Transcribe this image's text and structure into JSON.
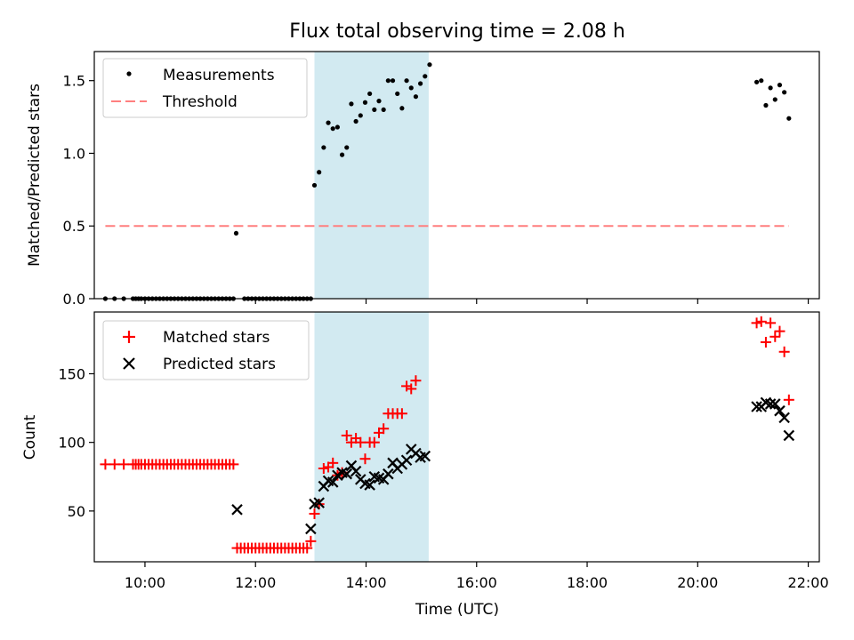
{
  "figure": {
    "title": "Flux total observing time = 2.08 h"
  },
  "colors": {
    "measurements": "#000000",
    "threshold": "#ff7f7f",
    "matched": "#ff0000",
    "predicted": "#000000",
    "shade": "#add8e6"
  },
  "chart_data": [
    {
      "type": "scatter",
      "panel": "top",
      "ylabel": "Matched/Predicted stars",
      "xlim": [
        "09:05",
        "22:12"
      ],
      "ylim": [
        0,
        1.7
      ],
      "yticks": [
        0.0,
        0.5,
        1.0,
        1.5
      ],
      "ytick_labels": [
        "0.0",
        "0.5",
        "1.0",
        "1.5"
      ],
      "x_tick_labels_shown": false,
      "grid": false,
      "legend_position": "top-left",
      "shaded_span": {
        "x_start": "13:04",
        "x_end": "15:08"
      },
      "series": [
        {
          "name": "Measurements",
          "marker": "dot",
          "points": [
            [
              "09:17",
              0
            ],
            [
              "09:27",
              0
            ],
            [
              "09:37",
              0
            ],
            [
              "09:47",
              0
            ],
            [
              "09:50",
              0
            ],
            [
              "09:53",
              0
            ],
            [
              "09:56",
              0
            ],
            [
              "10:00",
              0
            ],
            [
              "10:04",
              0
            ],
            [
              "10:08",
              0
            ],
            [
              "10:12",
              0
            ],
            [
              "10:16",
              0
            ],
            [
              "10:20",
              0
            ],
            [
              "10:24",
              0
            ],
            [
              "10:28",
              0
            ],
            [
              "10:32",
              0
            ],
            [
              "10:36",
              0
            ],
            [
              "10:40",
              0
            ],
            [
              "10:44",
              0
            ],
            [
              "10:48",
              0
            ],
            [
              "10:52",
              0
            ],
            [
              "10:56",
              0
            ],
            [
              "11:00",
              0
            ],
            [
              "11:04",
              0
            ],
            [
              "11:08",
              0
            ],
            [
              "11:12",
              0
            ],
            [
              "11:16",
              0
            ],
            [
              "11:20",
              0
            ],
            [
              "11:24",
              0
            ],
            [
              "11:28",
              0
            ],
            [
              "11:32",
              0
            ],
            [
              "11:36",
              0
            ],
            [
              "11:39",
              0.45
            ],
            [
              "11:48",
              0
            ],
            [
              "11:52",
              0
            ],
            [
              "11:56",
              0
            ],
            [
              "12:00",
              0
            ],
            [
              "12:04",
              0
            ],
            [
              "12:08",
              0
            ],
            [
              "12:12",
              0
            ],
            [
              "12:16",
              0
            ],
            [
              "12:20",
              0
            ],
            [
              "12:24",
              0
            ],
            [
              "12:28",
              0
            ],
            [
              "12:32",
              0
            ],
            [
              "12:36",
              0
            ],
            [
              "12:40",
              0
            ],
            [
              "12:44",
              0
            ],
            [
              "12:48",
              0
            ],
            [
              "12:52",
              0
            ],
            [
              "12:56",
              0
            ],
            [
              "13:00",
              0
            ],
            [
              "13:04",
              0.78
            ],
            [
              "13:09",
              0.87
            ],
            [
              "13:14",
              1.04
            ],
            [
              "13:19",
              1.21
            ],
            [
              "13:24",
              1.17
            ],
            [
              "13:29",
              1.18
            ],
            [
              "13:34",
              0.99
            ],
            [
              "13:39",
              1.04
            ],
            [
              "13:44",
              1.34
            ],
            [
              "13:49",
              1.22
            ],
            [
              "13:54",
              1.26
            ],
            [
              "13:59",
              1.35
            ],
            [
              "14:04",
              1.41
            ],
            [
              "14:09",
              1.3
            ],
            [
              "14:14",
              1.36
            ],
            [
              "14:19",
              1.3
            ],
            [
              "14:24",
              1.5
            ],
            [
              "14:29",
              1.5
            ],
            [
              "14:34",
              1.41
            ],
            [
              "14:39",
              1.31
            ],
            [
              "14:44",
              1.5
            ],
            [
              "14:49",
              1.45
            ],
            [
              "14:54",
              1.39
            ],
            [
              "14:59",
              1.48
            ],
            [
              "15:04",
              1.53
            ],
            [
              "15:09",
              1.61
            ],
            [
              "21:04",
              1.49
            ],
            [
              "21:09",
              1.5
            ],
            [
              "21:14",
              1.33
            ],
            [
              "21:19",
              1.45
            ],
            [
              "21:24",
              1.37
            ],
            [
              "21:29",
              1.47
            ],
            [
              "21:34",
              1.42
            ],
            [
              "21:39",
              1.24
            ]
          ]
        },
        {
          "name": "Threshold",
          "marker": "dashed-line",
          "points": [
            [
              "09:17",
              0.5
            ],
            [
              "21:39",
              0.5
            ]
          ]
        }
      ]
    },
    {
      "type": "scatter",
      "panel": "bottom",
      "xlabel": "Time (UTC)",
      "ylabel": "Count",
      "xlim": [
        "09:05",
        "22:12"
      ],
      "ylim": [
        13,
        195
      ],
      "xticks": [
        "10:00",
        "12:00",
        "14:00",
        "16:00",
        "18:00",
        "20:00",
        "22:00"
      ],
      "yticks": [
        50,
        100,
        150
      ],
      "ytick_labels": [
        "50",
        "100",
        "150"
      ],
      "grid": false,
      "legend_position": "top-left",
      "shaded_span": {
        "x_start": "13:04",
        "x_end": "15:08"
      },
      "series": [
        {
          "name": "Matched stars",
          "marker": "plus",
          "points": [
            [
              "09:17",
              84
            ],
            [
              "09:27",
              84
            ],
            [
              "09:37",
              84
            ],
            [
              "09:47",
              84
            ],
            [
              "09:50",
              84
            ],
            [
              "09:53",
              84
            ],
            [
              "09:56",
              84
            ],
            [
              "10:00",
              84
            ],
            [
              "10:04",
              84
            ],
            [
              "10:08",
              84
            ],
            [
              "10:12",
              84
            ],
            [
              "10:16",
              84
            ],
            [
              "10:20",
              84
            ],
            [
              "10:24",
              84
            ],
            [
              "10:28",
              84
            ],
            [
              "10:32",
              84
            ],
            [
              "10:36",
              84
            ],
            [
              "10:40",
              84
            ],
            [
              "10:44",
              84
            ],
            [
              "10:48",
              84
            ],
            [
              "10:52",
              84
            ],
            [
              "10:56",
              84
            ],
            [
              "11:00",
              84
            ],
            [
              "11:04",
              84
            ],
            [
              "11:08",
              84
            ],
            [
              "11:12",
              84
            ],
            [
              "11:16",
              84
            ],
            [
              "11:20",
              84
            ],
            [
              "11:24",
              84
            ],
            [
              "11:28",
              84
            ],
            [
              "11:32",
              84
            ],
            [
              "11:36",
              84
            ],
            [
              "11:40",
              23
            ],
            [
              "11:44",
              23
            ],
            [
              "11:48",
              23
            ],
            [
              "11:52",
              23
            ],
            [
              "11:56",
              23
            ],
            [
              "12:00",
              23
            ],
            [
              "12:04",
              23
            ],
            [
              "12:08",
              23
            ],
            [
              "12:12",
              23
            ],
            [
              "12:16",
              23
            ],
            [
              "12:20",
              23
            ],
            [
              "12:24",
              23
            ],
            [
              "12:28",
              23
            ],
            [
              "12:32",
              23
            ],
            [
              "12:36",
              23
            ],
            [
              "12:40",
              23
            ],
            [
              "12:44",
              23
            ],
            [
              "12:48",
              23
            ],
            [
              "12:52",
              23
            ],
            [
              "12:56",
              23
            ],
            [
              "13:00",
              28
            ],
            [
              "13:04",
              48
            ],
            [
              "13:09",
              55
            ],
            [
              "13:14",
              81
            ],
            [
              "13:19",
              82
            ],
            [
              "13:24",
              85
            ],
            [
              "13:29",
              76
            ],
            [
              "13:34",
              78
            ],
            [
              "13:39",
              105
            ],
            [
              "13:44",
              100
            ],
            [
              "13:49",
              103
            ],
            [
              "13:54",
              100
            ],
            [
              "13:59",
              88
            ],
            [
              "14:04",
              100
            ],
            [
              "14:09",
              100
            ],
            [
              "14:14",
              107
            ],
            [
              "14:19",
              110
            ],
            [
              "14:24",
              121
            ],
            [
              "14:29",
              121
            ],
            [
              "14:34",
              121
            ],
            [
              "14:39",
              121
            ],
            [
              "14:44",
              141
            ],
            [
              "14:49",
              139
            ],
            [
              "14:54",
              145
            ],
            [
              "21:04",
              187
            ],
            [
              "21:09",
              188
            ],
            [
              "21:14",
              173
            ],
            [
              "21:19",
              187
            ],
            [
              "21:24",
              177
            ],
            [
              "21:29",
              181
            ],
            [
              "21:34",
              166
            ],
            [
              "21:39",
              131
            ]
          ]
        },
        {
          "name": "Predicted stars",
          "marker": "x",
          "points": [
            [
              "11:40",
              51
            ],
            [
              "13:00",
              37
            ],
            [
              "13:04",
              55
            ],
            [
              "13:09",
              56
            ],
            [
              "13:14",
              68
            ],
            [
              "13:19",
              72
            ],
            [
              "13:24",
              71
            ],
            [
              "13:29",
              76
            ],
            [
              "13:34",
              78
            ],
            [
              "13:39",
              77
            ],
            [
              "13:44",
              83
            ],
            [
              "13:49",
              79
            ],
            [
              "13:54",
              73
            ],
            [
              "13:59",
              70
            ],
            [
              "14:04",
              69
            ],
            [
              "14:09",
              75
            ],
            [
              "14:14",
              74
            ],
            [
              "14:19",
              73
            ],
            [
              "14:24",
              77
            ],
            [
              "14:29",
              85
            ],
            [
              "14:34",
              81
            ],
            [
              "14:39",
              84
            ],
            [
              "14:44",
              87
            ],
            [
              "14:49",
              95
            ],
            [
              "14:54",
              92
            ],
            [
              "14:59",
              89
            ],
            [
              "15:04",
              90
            ],
            [
              "21:04",
              126
            ],
            [
              "21:09",
              126
            ],
            [
              "21:14",
              129
            ],
            [
              "21:19",
              128
            ],
            [
              "21:24",
              128
            ],
            [
              "21:29",
              123
            ],
            [
              "21:34",
              118
            ],
            [
              "21:39",
              105
            ]
          ]
        }
      ]
    }
  ]
}
